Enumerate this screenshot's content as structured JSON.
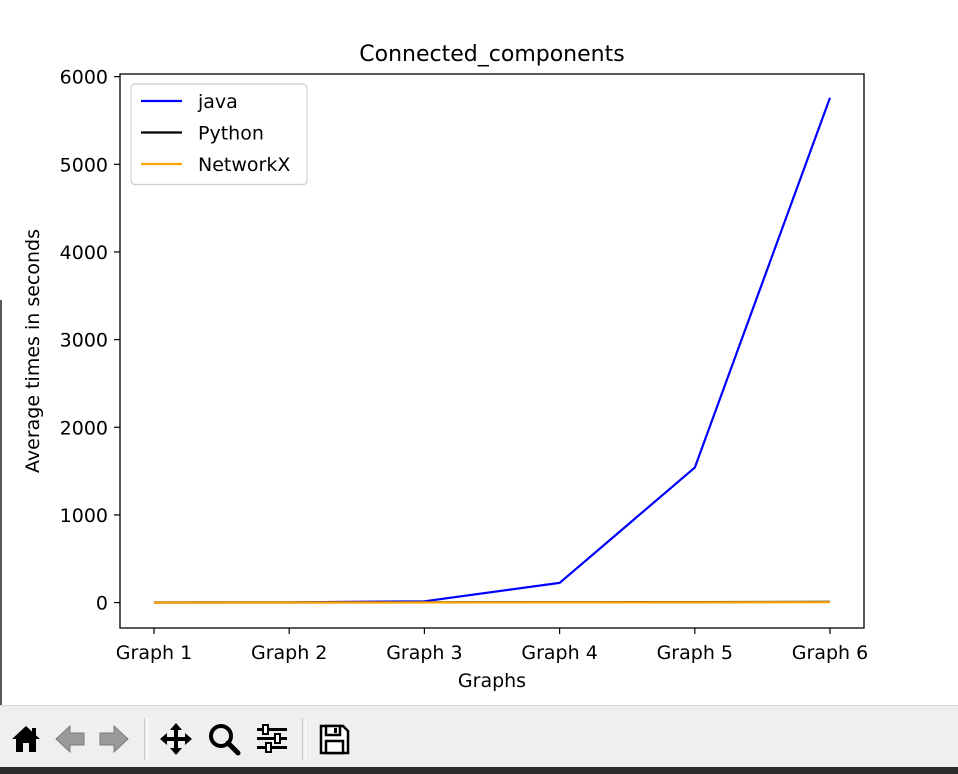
{
  "chart_data": {
    "type": "line",
    "title": "Connected_components",
    "xlabel": "Graphs",
    "ylabel": "Average times in seconds",
    "categories": [
      "Graph 1",
      "Graph 2",
      "Graph 3",
      "Graph 4",
      "Graph 5",
      "Graph 6"
    ],
    "ylim": [
      -290,
      6030
    ],
    "yticks": [
      0,
      1000,
      2000,
      3000,
      4000,
      5000,
      6000
    ],
    "grid": false,
    "legend": "top-left",
    "series": [
      {
        "name": "java",
        "color": "#0000ff",
        "values": [
          1,
          3,
          15,
          225,
          1540,
          5760
        ]
      },
      {
        "name": "Python",
        "color": "#000000",
        "values": [
          0.5,
          1,
          2,
          4,
          6,
          8
        ]
      },
      {
        "name": "NetworkX",
        "color": "#ffa500",
        "values": [
          0.2,
          0.5,
          1,
          2,
          3,
          4
        ]
      }
    ]
  },
  "toolbar": {
    "buttons": [
      {
        "name": "home-button",
        "icon": "home-icon"
      },
      {
        "name": "back-button",
        "icon": "arrow-left-icon"
      },
      {
        "name": "forward-button",
        "icon": "arrow-right-icon"
      },
      {
        "name": "pan-button",
        "icon": "move-icon"
      },
      {
        "name": "zoom-button",
        "icon": "magnifier-icon"
      },
      {
        "name": "configure-subplots-button",
        "icon": "sliders-icon"
      },
      {
        "name": "save-button",
        "icon": "floppy-disk-icon"
      }
    ]
  }
}
